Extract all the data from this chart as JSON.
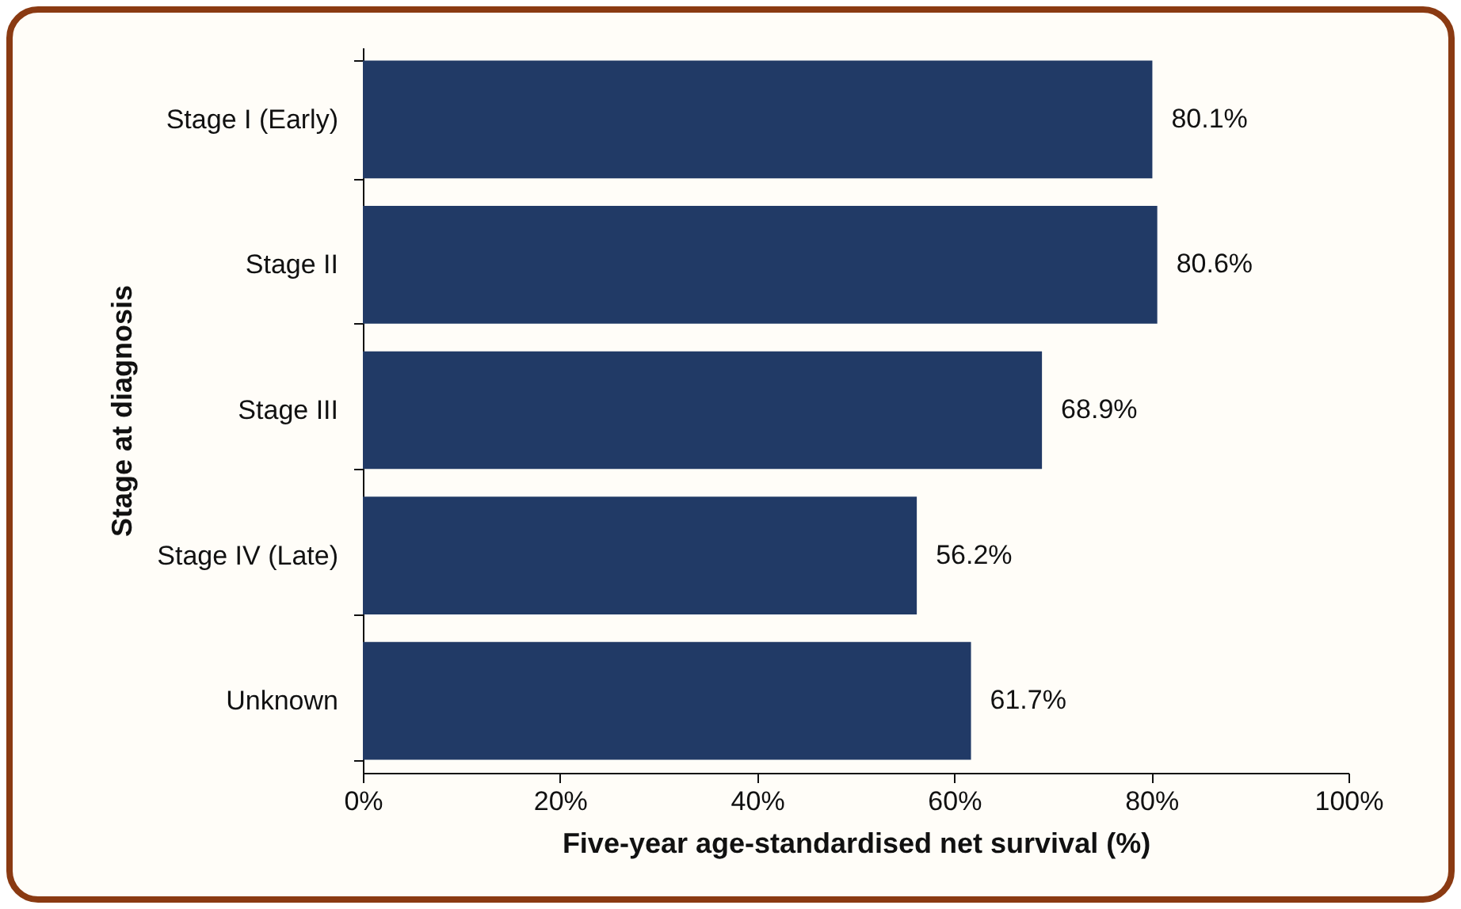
{
  "chart_data": {
    "type": "bar",
    "orientation": "horizontal",
    "xlabel": "Five-year age-standardised net survival (%)",
    "ylabel": "Stage at diagnosis",
    "categories": [
      "Stage I (Early)",
      "Stage II",
      "Stage III",
      "Stage IV (Late)",
      "Unknown"
    ],
    "values": [
      80.1,
      80.6,
      68.9,
      56.2,
      61.7
    ],
    "value_labels": [
      "80.1%",
      "80.6%",
      "68.9%",
      "56.2%",
      "61.7%"
    ],
    "color": "#213a66",
    "xlim": [
      0,
      100
    ],
    "xticks": [
      {
        "value": 0,
        "label": "0%"
      },
      {
        "value": 20,
        "label": "20%"
      },
      {
        "value": 40,
        "label": "40%"
      },
      {
        "value": 60,
        "label": "60%"
      },
      {
        "value": 80,
        "label": "80%"
      },
      {
        "value": 100,
        "label": "100%"
      }
    ],
    "grid": false
  }
}
